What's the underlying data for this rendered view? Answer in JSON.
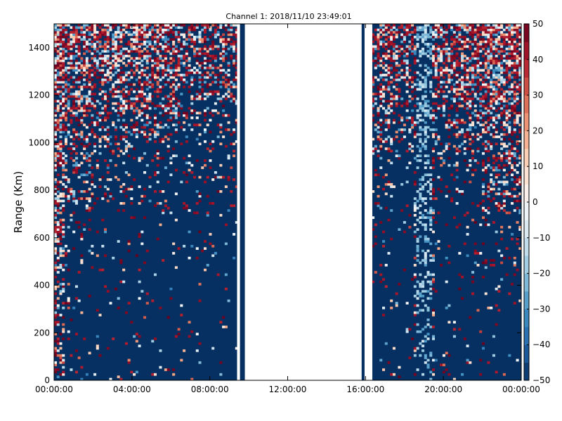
{
  "chart_data": {
    "type": "heatmap",
    "title": "Channel 1: 2018/11/10 23:49:01",
    "xlabel": "",
    "ylabel": "Range (Km)",
    "x_tick_labels": [
      "00:00:00",
      "04:00:00",
      "08:00:00",
      "12:00:00",
      "16:00:00",
      "20:00:00",
      "00:00:00"
    ],
    "x_range_hours": [
      0,
      24
    ],
    "y_ticks": [
      0,
      200,
      400,
      600,
      800,
      1000,
      1200,
      1400
    ],
    "y_tick_labels": [
      "0",
      "200",
      "400",
      "600",
      "800",
      "1000",
      "1200",
      "1400"
    ],
    "ylim": [
      0,
      1500
    ],
    "colorbar": {
      "colormap": "RdBu_r",
      "range": [
        -50,
        50
      ],
      "ticks": [
        -50,
        -40,
        -30,
        -20,
        -10,
        0,
        10,
        20,
        30,
        40,
        50
      ],
      "tick_labels": [
        "−50",
        "−40",
        "−30",
        "−20",
        "−10",
        "0",
        "10",
        "20",
        "30",
        "40",
        "50"
      ]
    },
    "colors": {
      "low": "#053061",
      "high": "#67001f",
      "background": "#ffffff"
    },
    "data_gaps_hours": [
      [
        9.4,
        9.55
      ],
      [
        9.8,
        15.8
      ],
      [
        15.95,
        16.35
      ]
    ],
    "activity_profile": [
      {
        "hours": [
          0.0,
          0.5
        ],
        "level": 0.9,
        "top_km": 1500,
        "base_km": 0
      },
      {
        "hours": [
          0.5,
          2.0
        ],
        "level": 0.75,
        "top_km": 1500,
        "base_km": 750
      },
      {
        "hours": [
          2.0,
          4.0
        ],
        "level": 0.7,
        "top_km": 1500,
        "base_km": 950
      },
      {
        "hours": [
          4.0,
          6.5
        ],
        "level": 0.8,
        "top_km": 1500,
        "base_km": 1000
      },
      {
        "hours": [
          6.5,
          9.4
        ],
        "level": 0.6,
        "top_km": 1500,
        "base_km": 1050
      },
      {
        "hours": [
          16.35,
          18.5
        ],
        "level": 0.65,
        "top_km": 1500,
        "base_km": 950
      },
      {
        "hours": [
          18.5,
          19.5
        ],
        "level": 0.55,
        "top_km": 1500,
        "base_km": 0
      },
      {
        "hours": [
          19.5,
          22.0
        ],
        "level": 0.75,
        "top_km": 1500,
        "base_km": 950
      },
      {
        "hours": [
          22.0,
          24.0
        ],
        "level": 0.8,
        "top_km": 1500,
        "base_km": 700
      }
    ]
  }
}
